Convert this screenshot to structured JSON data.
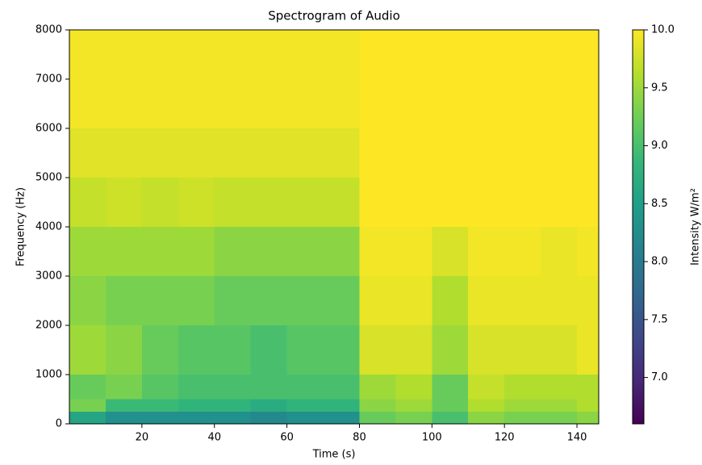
{
  "chart_data": {
    "type": "heatmap",
    "title": "Spectrogram of Audio",
    "x_label": "Time (s)",
    "y_label": "Frequency (Hz)",
    "colorbar_label": "Intensity W/m²",
    "colormap": "viridis",
    "x_edges": [
      0,
      10,
      20,
      30,
      40,
      50,
      60,
      70,
      80,
      90,
      100,
      110,
      120,
      130,
      140,
      146
    ],
    "y_edges": [
      0,
      250,
      500,
      1000,
      2000,
      3000,
      4000,
      5000,
      6000,
      8000
    ],
    "z": [
      [
        8.6,
        8.3,
        8.3,
        8.3,
        8.3,
        8.2,
        8.3,
        8.3,
        9.2,
        9.3,
        9.0,
        9.4,
        9.3,
        9.3,
        9.4
      ],
      [
        9.3,
        8.9,
        8.9,
        8.8,
        8.8,
        8.7,
        8.8,
        8.8,
        9.4,
        9.5,
        9.2,
        9.6,
        9.5,
        9.5,
        9.6
      ],
      [
        9.2,
        9.3,
        9.1,
        9.0,
        9.0,
        9.0,
        9.0,
        9.0,
        9.5,
        9.6,
        9.2,
        9.7,
        9.6,
        9.6,
        9.6
      ],
      [
        9.5,
        9.4,
        9.2,
        9.1,
        9.1,
        9.0,
        9.1,
        9.1,
        9.8,
        9.8,
        9.5,
        9.8,
        9.8,
        9.8,
        9.9
      ],
      [
        9.4,
        9.3,
        9.3,
        9.3,
        9.2,
        9.2,
        9.2,
        9.2,
        9.9,
        9.9,
        9.6,
        9.9,
        9.9,
        9.9,
        9.9
      ],
      [
        9.5,
        9.5,
        9.5,
        9.5,
        9.4,
        9.4,
        9.4,
        9.4,
        9.95,
        9.95,
        9.8,
        9.95,
        9.95,
        9.9,
        9.95
      ],
      [
        9.7,
        9.75,
        9.7,
        9.75,
        9.7,
        9.7,
        9.7,
        9.7,
        10,
        10,
        10,
        10,
        10,
        10,
        10
      ],
      [
        9.85,
        9.85,
        9.85,
        9.85,
        9.85,
        9.85,
        9.85,
        9.85,
        10,
        10,
        10,
        10,
        10,
        10,
        10
      ],
      [
        9.95,
        9.95,
        9.95,
        9.95,
        9.95,
        9.95,
        9.95,
        9.95,
        10,
        10,
        10,
        10,
        10,
        10,
        10
      ]
    ],
    "xlim": [
      0,
      146
    ],
    "ylim": [
      0,
      8000
    ],
    "xticks": [
      20,
      40,
      60,
      80,
      100,
      120,
      140
    ],
    "yticks": [
      0,
      1000,
      2000,
      3000,
      4000,
      5000,
      6000,
      7000,
      8000
    ],
    "clim": [
      6.6,
      10
    ],
    "cticks": [
      {
        "value": 7,
        "label": "7.0"
      },
      {
        "value": 7.5,
        "label": "7.5"
      },
      {
        "value": 8,
        "label": "8.0"
      },
      {
        "value": 8.5,
        "label": "8.5"
      },
      {
        "value": 9,
        "label": "9.0"
      },
      {
        "value": 9.5,
        "label": "9.5"
      },
      {
        "value": 10,
        "label": "10.0"
      }
    ]
  }
}
